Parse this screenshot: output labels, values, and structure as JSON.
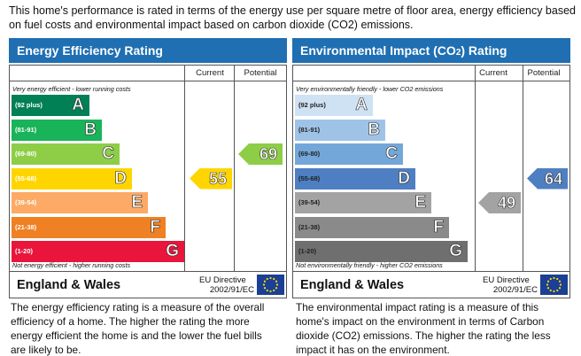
{
  "intro": "This home's performance is rated in terms of the energy use per square metre of floor area, energy efficiency based on fuel costs and environmental impact based on carbon dioxide (CO2) emissions.",
  "efficiency": {
    "title": "Energy Efficiency Rating",
    "current_label": "Current",
    "potential_label": "Potential",
    "top_note": "Very energy efficient - lower running costs",
    "bottom_note": "Not energy efficient - higher running costs",
    "bands": [
      {
        "range": "(92 plus)",
        "letter": "A",
        "color": "#008054"
      },
      {
        "range": "(81-91)",
        "letter": "B",
        "color": "#19b459"
      },
      {
        "range": "(69-80)",
        "letter": "C",
        "color": "#8dce46"
      },
      {
        "range": "(55-68)",
        "letter": "D",
        "color": "#ffd500"
      },
      {
        "range": "(39-54)",
        "letter": "E",
        "color": "#fcaa65"
      },
      {
        "range": "(21-38)",
        "letter": "F",
        "color": "#ef8023"
      },
      {
        "range": "(1-20)",
        "letter": "G",
        "color": "#e9153b"
      }
    ],
    "current": {
      "value": "55",
      "color": "#ffd500"
    },
    "potential": {
      "value": "69",
      "color": "#8dce46"
    },
    "region": "England & Wales",
    "directive_line1": "EU Directive",
    "directive_line2": "2002/91/EC",
    "description": "The energy efficiency rating is a measure of the overall efficiency of a home. The higher the rating the more energy efficient the home is and the lower the fuel bills are likely to be."
  },
  "environmental": {
    "title": "Environmental Impact (CO2) Rating",
    "current_label": "Current",
    "potential_label": "Potential",
    "top_note": "Very environmentally friendly - lower CO2 emissions",
    "bottom_note": "Not environmentally friendly - higher CO2 emissions",
    "bands": [
      {
        "range": "(92 plus)",
        "letter": "A",
        "color": "#cfe2f3"
      },
      {
        "range": "(81-91)",
        "letter": "B",
        "color": "#9fc3e7"
      },
      {
        "range": "(69-80)",
        "letter": "C",
        "color": "#74a7d9"
      },
      {
        "range": "(55-68)",
        "letter": "D",
        "color": "#4e7fc2"
      },
      {
        "range": "(39-54)",
        "letter": "E",
        "color": "#a3a3a3"
      },
      {
        "range": "(21-38)",
        "letter": "F",
        "color": "#8a8a8a"
      },
      {
        "range": "(1-20)",
        "letter": "G",
        "color": "#6f6f6f"
      }
    ],
    "current": {
      "value": "49",
      "color": "#a3a3a3"
    },
    "potential": {
      "value": "64",
      "color": "#4e7fc2"
    },
    "region": "England & Wales",
    "directive_line1": "EU Directive",
    "directive_line2": "2002/91/EC",
    "description": "The environmental impact rating is a measure of this home's impact on the environment in terms of Carbon dioxide (CO2) emissions. The higher the rating the less impact it has on the environment."
  },
  "icons": {
    "flag": "eu-flag-icon"
  }
}
